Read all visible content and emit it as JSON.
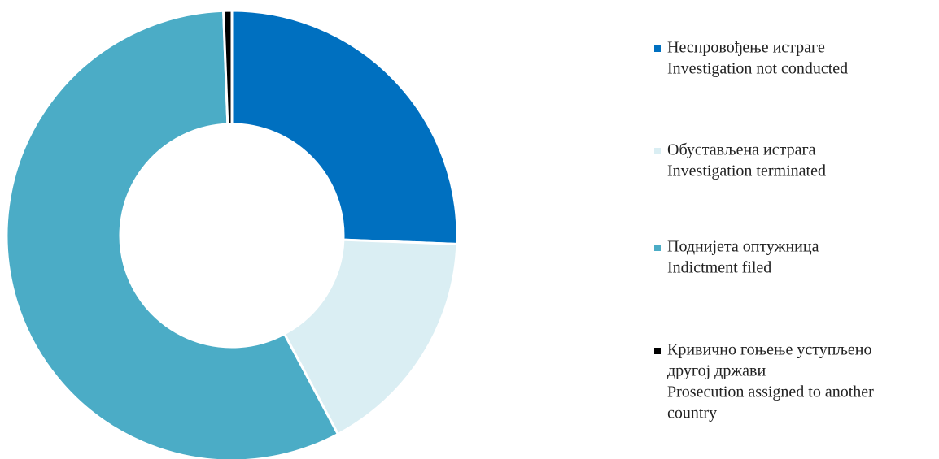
{
  "chart_data": {
    "type": "donut",
    "categories": [
      [
        "Неспровођење истраге",
        "Investigation not conducted"
      ],
      [
        "Обустављена истрага",
        "Investigation terminated"
      ],
      [
        "Поднијета оптужница",
        "Indictment filed"
      ],
      [
        "Кривично гоњење уступљено",
        "другој држави",
        "Prosecution assigned to another",
        "country"
      ]
    ],
    "values": [
      25.6,
      16.6,
      57.2,
      0.6
    ],
    "colors": [
      "#0070c0",
      "#daeef3",
      "#4bacc6",
      "#000000"
    ],
    "legend": "right"
  }
}
